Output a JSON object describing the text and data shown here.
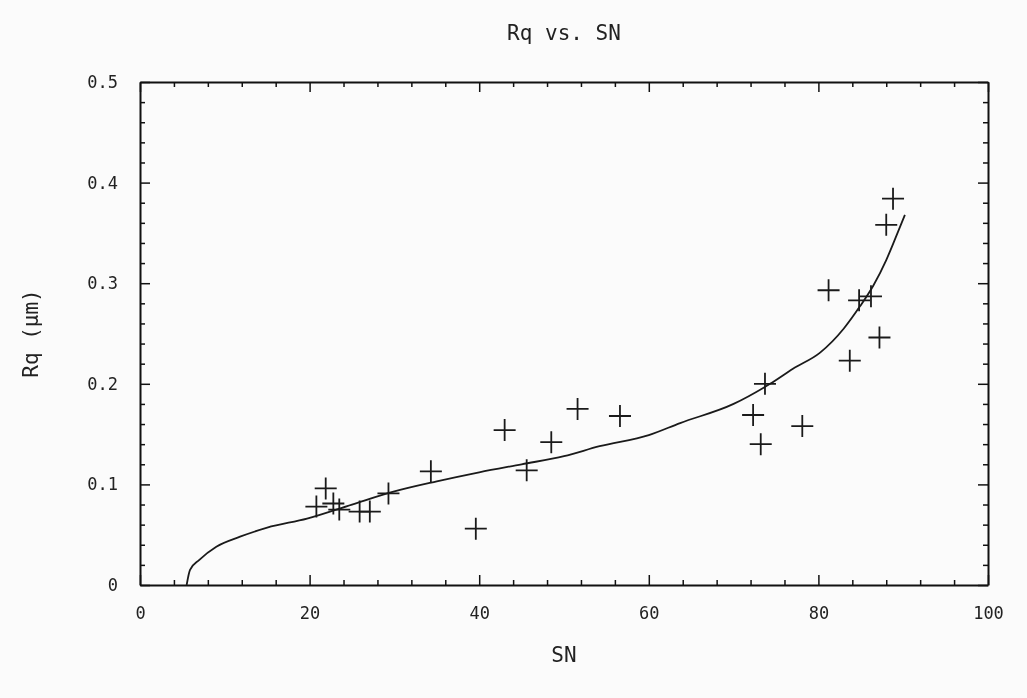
{
  "chart_data": {
    "type": "scatter",
    "title": "Rq vs. SN",
    "xlabel": "SN",
    "ylabel": "Rq (μm)",
    "xlim": [
      0,
      100
    ],
    "ylim": [
      0,
      0.5
    ],
    "xticks": [
      0,
      {
        "value": 4,
        "label": null
      },
      {
        "value": 8,
        "label": null
      },
      {
        "value": 12,
        "label": null
      },
      {
        "value": 16,
        "label": null
      },
      20,
      {
        "value": 24,
        "label": null
      },
      {
        "value": 28,
        "label": null
      },
      {
        "value": 32,
        "label": null
      },
      {
        "value": 36,
        "label": null
      },
      40,
      {
        "value": 44,
        "label": null
      },
      {
        "value": 48,
        "label": null
      },
      {
        "value": 52,
        "label": null
      },
      {
        "value": 56,
        "label": null
      },
      60,
      {
        "value": 64,
        "label": null
      },
      {
        "value": 68,
        "label": null
      },
      {
        "value": 72,
        "label": null
      },
      {
        "value": 76,
        "label": null
      },
      80,
      {
        "value": 84,
        "label": null
      },
      {
        "value": 88,
        "label": null
      },
      {
        "value": 92,
        "label": null
      },
      {
        "value": 96,
        "label": null
      },
      100
    ],
    "yticks": [
      0,
      {
        "value": 0.02,
        "label": null
      },
      {
        "value": 0.04,
        "label": null
      },
      {
        "value": 0.06,
        "label": null
      },
      {
        "value": 0.08,
        "label": null
      },
      0.1,
      {
        "value": 0.12,
        "label": null
      },
      {
        "value": 0.14,
        "label": null
      },
      {
        "value": 0.16,
        "label": null
      },
      {
        "value": 0.18,
        "label": null
      },
      0.2,
      {
        "value": 0.22,
        "label": null
      },
      {
        "value": 0.24,
        "label": null
      },
      {
        "value": 0.26,
        "label": null
      },
      {
        "value": 0.28,
        "label": null
      },
      0.3,
      {
        "value": 0.32,
        "label": null
      },
      {
        "value": 0.34,
        "label": null
      },
      {
        "value": 0.36,
        "label": null
      },
      {
        "value": 0.38,
        "label": null
      },
      0.4,
      {
        "value": 0.42,
        "label": null
      },
      {
        "value": 0.44,
        "label": null
      },
      {
        "value": 0.46,
        "label": null
      },
      {
        "value": 0.48,
        "label": null
      },
      0.5
    ],
    "grid": false,
    "marker": "cross",
    "series": [
      {
        "color": "#1a1a1a",
        "x": [
          20.8,
          21.9,
          22.8,
          23.5,
          25.9,
          27.1,
          29.3,
          34.3,
          39.6,
          43.0,
          45.6,
          48.5,
          51.6,
          56.6,
          72.3,
          73.2,
          73.7,
          78.1,
          81.2,
          83.7,
          84.8,
          86.2,
          87.2,
          88.0,
          88.8
        ],
        "values": [
          0.078,
          0.096,
          0.081,
          0.075,
          0.073,
          0.073,
          0.091,
          0.113,
          0.056,
          0.154,
          0.114,
          0.142,
          0.175,
          0.168,
          0.169,
          0.14,
          0.2,
          0.158,
          0.293,
          0.223,
          0.283,
          0.287,
          0.246,
          0.358,
          0.384
        ]
      },
      {
        "type": "line",
        "marker": "none",
        "color": "#1a1a1a",
        "line_style": "solid",
        "x": [
          5.5,
          5.9,
          7,
          9,
          11.8,
          15,
          19.7,
          25,
          30,
          35,
          40,
          45,
          50,
          54.2,
          60,
          63.7,
          70,
          74.3,
          77,
          80.2,
          83,
          84.9,
          86.5,
          88,
          89,
          90.2
        ],
        "values": [
          0,
          0.015,
          0.025,
          0.038,
          0.048,
          0.057,
          0.066,
          0.08,
          0.093,
          0.103,
          0.112,
          0.12,
          0.128,
          0.138,
          0.149,
          0.161,
          0.18,
          0.2,
          0.215,
          0.231,
          0.255,
          0.277,
          0.298,
          0.323,
          0.343,
          0.368
        ]
      }
    ]
  }
}
